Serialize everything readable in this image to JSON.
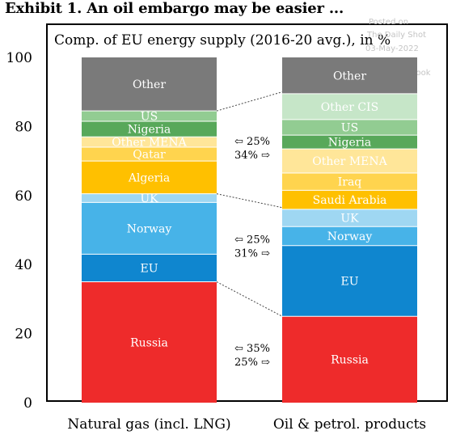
{
  "title": "Exhibit 1. An oil embargo may be easier ...",
  "watermark": [
    "Posted on",
    "The Daily Shot",
    "03-May-2022",
    "@SoberLook"
  ],
  "chart_data": {
    "type": "bar",
    "subtype": "stacked-100",
    "title": "Comp. of EU energy supply (2016-20 avg.), in %",
    "xlabel": "",
    "ylabel": "",
    "ylim": [
      0,
      100
    ],
    "yticks": [
      0,
      20,
      40,
      60,
      80,
      100
    ],
    "grid": false,
    "categories": [
      "Natural gas (incl. LNG)",
      "Oil & petrol. products"
    ],
    "stacks": [
      {
        "category": "Natural gas (incl. LNG)",
        "segments": [
          {
            "name": "Russia",
            "value": 35,
            "color": "#ee2b2b"
          },
          {
            "name": "EU",
            "value": 8,
            "color": "#0f86cf"
          },
          {
            "name": "Norway",
            "value": 15,
            "color": "#47b3e8"
          },
          {
            "name": "UK",
            "value": 2.5,
            "color": "#9fd7f2"
          },
          {
            "name": "Algeria",
            "value": 9.5,
            "color": "#ffc000"
          },
          {
            "name": "Qatar",
            "value": 4,
            "color": "#ffd44e"
          },
          {
            "name": "Other MENA",
            "value": 3,
            "color": "#ffe699"
          },
          {
            "name": "Nigeria",
            "value": 4.5,
            "color": "#58a85a"
          },
          {
            "name": "US",
            "value": 3,
            "color": "#92cc92"
          },
          {
            "name": "Other",
            "value": 15.5,
            "color": "#7a7a7a"
          }
        ]
      },
      {
        "category": "Oil & petrol. products",
        "segments": [
          {
            "name": "Russia",
            "value": 25,
            "color": "#ee2b2b"
          },
          {
            "name": "EU",
            "value": 20.5,
            "color": "#0f86cf"
          },
          {
            "name": "Norway",
            "value": 5.5,
            "color": "#47b3e8"
          },
          {
            "name": "UK",
            "value": 5,
            "color": "#9fd7f2"
          },
          {
            "name": "Saudi Arabia",
            "value": 5.5,
            "color": "#ffc000"
          },
          {
            "name": "Iraq",
            "value": 5,
            "color": "#ffd44e"
          },
          {
            "name": "Other MENA",
            "value": 7,
            "color": "#ffe699"
          },
          {
            "name": "Nigeria",
            "value": 4,
            "color": "#58a85a"
          },
          {
            "name": "US",
            "value": 4.5,
            "color": "#92cc92"
          },
          {
            "name": "Other CIS",
            "value": 7.5,
            "color": "#c6e6c8"
          },
          {
            "name": "Other",
            "value": 10.5,
            "color": "#7a7a7a"
          }
        ]
      }
    ],
    "connectors": [
      {
        "left_top": 35,
        "right_top": 25
      },
      {
        "left_top": 60.5,
        "right_top": 56.5
      },
      {
        "left_top": 84.5,
        "right_top": 90
      }
    ],
    "annotations": [
      {
        "text_top": "⇦ 25%",
        "text_bottom": "34% ⇨",
        "y": 74
      },
      {
        "text_top": "⇦ 25%",
        "text_bottom": "31% ⇨",
        "y": 45.5
      },
      {
        "text_top": "⇦ 35%",
        "text_bottom": "25% ⇨",
        "y": 14
      }
    ]
  }
}
